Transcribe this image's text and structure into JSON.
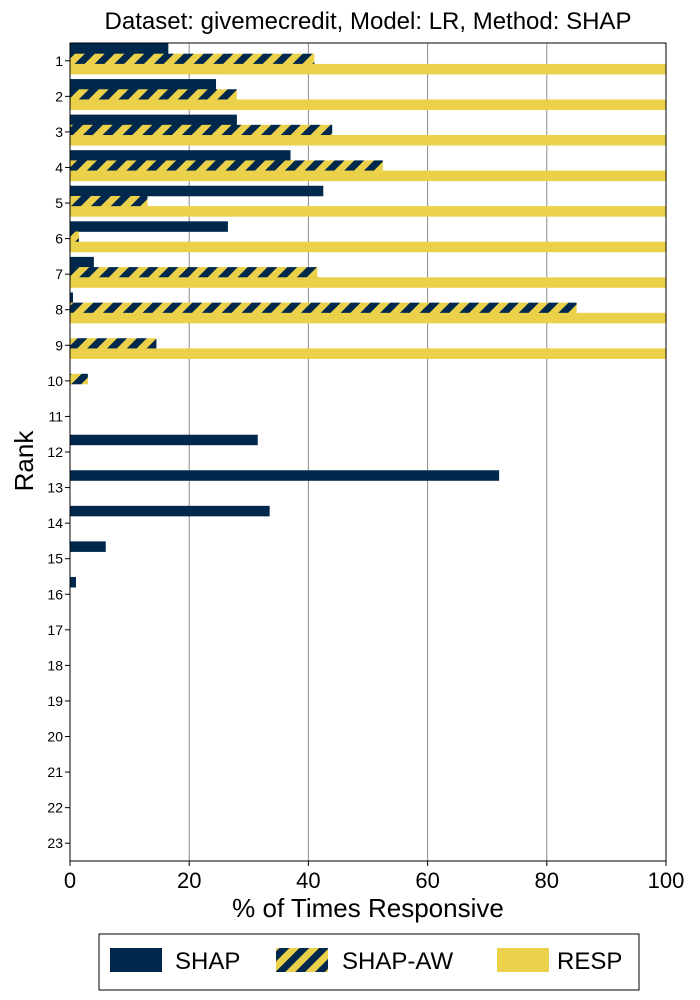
{
  "chart_data": {
    "type": "bar",
    "orientation": "horizontal",
    "title": "Dataset: givemecredit, Model: LR, Method: SHAP",
    "xlabel": "% of Times Responsive",
    "ylabel": "Rank",
    "xlim": [
      0,
      100
    ],
    "x_ticks": [
      "0",
      "20",
      "40",
      "60",
      "80",
      "100"
    ],
    "grid": "vertical",
    "legend_position": "bottom",
    "categories": [
      "1",
      "2",
      "3",
      "4",
      "5",
      "6",
      "7",
      "8",
      "9",
      "10",
      "11",
      "12",
      "13",
      "14",
      "15",
      "16",
      "17",
      "18",
      "19",
      "20",
      "21",
      "22",
      "23"
    ],
    "series": [
      {
        "name": "SHAP",
        "color": "#00274C",
        "pattern": "solid",
        "values": [
          16.5,
          24.5,
          28,
          37,
          42.5,
          26.5,
          4,
          0.5,
          0,
          0,
          0,
          31.5,
          72,
          33.5,
          6,
          1,
          0,
          0,
          0,
          0,
          0,
          0,
          0
        ]
      },
      {
        "name": "SHAP-AW",
        "color": "#00274C",
        "pattern": "hatch",
        "values": [
          41,
          28,
          44,
          52.5,
          13,
          1.5,
          41.5,
          85,
          14.5,
          3,
          0,
          0,
          0,
          0,
          0,
          0,
          0,
          0,
          0,
          0,
          0,
          0,
          0
        ]
      },
      {
        "name": "RESP",
        "color": "#EBD14A",
        "pattern": "solid",
        "values": [
          100,
          100,
          100,
          100,
          100,
          100,
          100,
          100,
          100,
          0,
          0,
          0,
          0,
          0,
          0,
          0,
          0,
          0,
          0,
          0,
          0,
          0,
          0
        ]
      }
    ]
  }
}
